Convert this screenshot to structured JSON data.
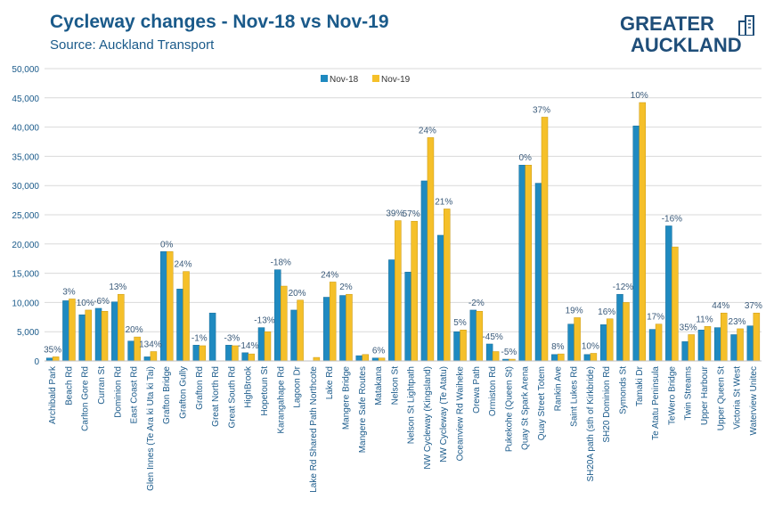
{
  "header": {
    "title": "Cycleway changes - Nov-18 vs Nov-19",
    "subtitle": "Source: Auckland Transport"
  },
  "logo": {
    "line1": "GREATER",
    "line2": "AUCKLAND",
    "icon": "building-icon",
    "color": "#1f4e79"
  },
  "colors": {
    "nov18": "#1f8ac0",
    "nov19": "#f5c02a",
    "gridline": "#d9d9d9",
    "label_text": "#3a5a7a",
    "tick_text": "#1a5a8a"
  },
  "chart_data": {
    "type": "bar",
    "grid": true,
    "legend_position": "top-center",
    "ylim": [
      0,
      50000
    ],
    "yticks": [
      0,
      5000,
      10000,
      15000,
      20000,
      25000,
      30000,
      35000,
      40000,
      45000,
      50000
    ],
    "ytick_labels": [
      "0",
      "5,000",
      "10,000",
      "15,000",
      "20,000",
      "25,000",
      "30,000",
      "35,000",
      "40,000",
      "45,000",
      "50,000"
    ],
    "categories": [
      "Archibald Park",
      "Beach Rd",
      "Carlton Gore Rd",
      "Curran St",
      "Dominion Rd",
      "East Coast Rd",
      "Glen Innes (Te Ara ki Uta ki Tai)",
      "Grafton Bridge",
      "Grafton Gully",
      "Grafton Rd",
      "Great North Rd",
      "Great South Rd",
      "HighBrook",
      "Hopetoun St",
      "Karangahape Rd",
      "Lagoon Dr",
      "Lake Rd Shared Path Northcote",
      "Lake Rd",
      "Mangere Bridge",
      "Mangere Safe Routes",
      "Matakana",
      "Nelson St",
      "Nelson St Lightpath",
      "NW Cycleway (Kingsland)",
      "NW Cycleway (Te Atatu)",
      "Oceanview Rd Waiheke",
      "Orewa Path",
      "Ormiston Rd",
      "Pukekohe (Queen St)",
      "Quay St Spark Arena",
      "Quay Street Totem",
      "Rankin Ave",
      "Saint Lukes Rd",
      "SH20A path (sth of Kirkbride)",
      "SH20 Dominion Rd",
      "Symonds St",
      "Tamaki Dr",
      "Te Atatu Peninsula",
      "TeWero Bridge",
      "Twin Streams",
      "Upper Harbour",
      "Upper Queen St",
      "Victoria St West",
      "Waterview Unitec"
    ],
    "series": [
      {
        "name": "Nov-18",
        "values": [
          500,
          10300,
          7900,
          9000,
          10100,
          3400,
          700,
          18700,
          12300,
          2700,
          8200,
          2700,
          1400,
          5700,
          15600,
          8700,
          0,
          10900,
          11200,
          900,
          500,
          17300,
          15200,
          30800,
          21500,
          5000,
          8700,
          2900,
          300,
          33500,
          30400,
          1100,
          6300,
          1100,
          6200,
          11400,
          40200,
          5400,
          23100,
          3300,
          5300,
          5700,
          4500,
          6000
        ]
      },
      {
        "name": "Nov-19",
        "values": [
          700,
          10600,
          8700,
          8500,
          11400,
          4100,
          1600,
          18700,
          15300,
          2600,
          0,
          2600,
          1200,
          5000,
          12800,
          10400,
          600,
          13500,
          11400,
          1100,
          500,
          24000,
          23900,
          38200,
          26000,
          5300,
          8500,
          1600,
          300,
          33500,
          41700,
          1200,
          7400,
          1300,
          7200,
          10000,
          44200,
          6300,
          19500,
          4500,
          5900,
          8200,
          5500,
          8200
        ]
      }
    ],
    "data_labels": [
      "35%",
      "3%",
      "10%",
      "-6%",
      "13%",
      "20%",
      "134%",
      "0%",
      "24%",
      "-1%",
      "",
      "-3%",
      "-14%",
      "-13%",
      "-18%",
      "20%",
      "",
      "24%",
      "2%",
      "",
      "6%",
      "39%",
      "57%",
      "24%",
      "21%",
      "5%",
      "-2%",
      "-45%",
      "-5%",
      "0%",
      "37%",
      "8%",
      "19%",
      "10%",
      "16%",
      "-12%",
      "10%",
      "17%",
      "-16%",
      "35%",
      "11%",
      "44%",
      "23%",
      "37%"
    ]
  }
}
